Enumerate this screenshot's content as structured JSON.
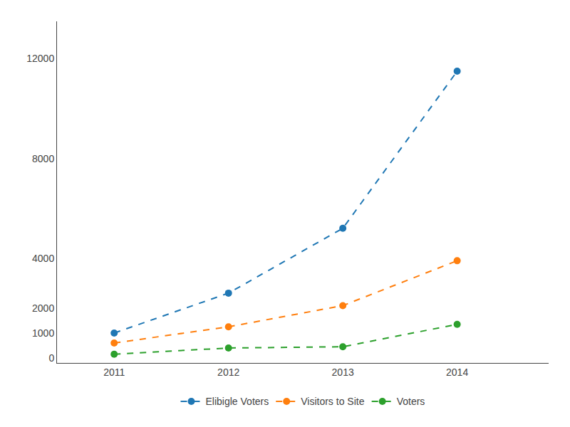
{
  "chart_data": {
    "type": "line",
    "x": [
      2011,
      2012,
      2013,
      2014
    ],
    "series": [
      {
        "name": "Elibigle Voters",
        "values": [
          1000,
          2600,
          5200,
          11500
        ]
      },
      {
        "name": "Visitors to Site",
        "values": [
          600,
          1250,
          2100,
          3900
        ]
      },
      {
        "name": "Voters",
        "values": [
          150,
          400,
          450,
          1350
        ]
      }
    ],
    "xlim": [
      2010.5,
      2014.8
    ],
    "xticks": [
      2011,
      2012,
      2013,
      2014
    ],
    "ylim": [
      -200,
      13500
    ],
    "yticks": [
      0,
      1000,
      2000,
      4000,
      8000,
      12000
    ],
    "grid": false,
    "legend": "bottom",
    "line_style": "dashed",
    "marker": "circle"
  }
}
